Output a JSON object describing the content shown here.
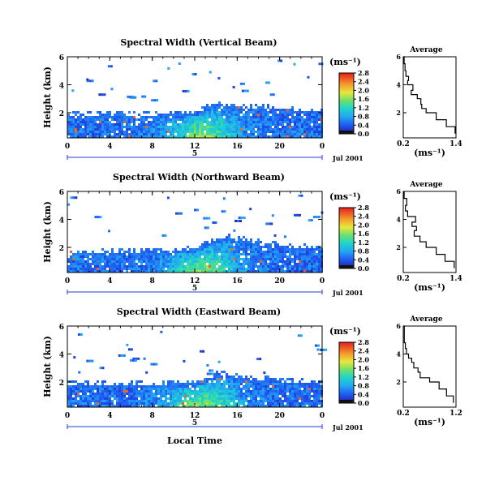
{
  "page": {
    "x_axis_label": "Local Time",
    "date_label": "Jul 2001",
    "day_label": "5",
    "colorbar_unit": "(ms⁻¹)",
    "avg_title": "Average",
    "avg_unit": "(ms⁻¹)",
    "y_axis_label": "Height (km)"
  },
  "chart_data": [
    {
      "type": "heatmap",
      "title": "Spectral Width (Vertical Beam)",
      "xlabel": "Local Time",
      "ylabel": "Height (km)",
      "x_ticks": [
        "0",
        "4",
        "8",
        "12",
        "16",
        "20",
        "0"
      ],
      "y_ticks": [
        "2",
        "4",
        "6"
      ],
      "xlim": [
        0,
        24
      ],
      "ylim": [
        0.2,
        6
      ],
      "boundary_layer_top_km": [
        1.9,
        1.9,
        1.9,
        1.9,
        1.9,
        1.9,
        1.9,
        1.9,
        1.9,
        1.95,
        1.95,
        2.0,
        2.1,
        2.4,
        2.7,
        2.6,
        2.5,
        2.4,
        2.5,
        2.4,
        2.4,
        2.3,
        2.2,
        2.2,
        2.2
      ],
      "colorbar": {
        "label": "(ms⁻¹)",
        "min": 0.0,
        "max": 2.8,
        "ticks": [
          "0.0",
          "0.4",
          "0.8",
          "1.2",
          "1.6",
          "2.0",
          "2.4",
          "2.8"
        ]
      },
      "average_profile": {
        "title": "Average",
        "xlabel": "(ms⁻¹)",
        "xlim": [
          0.2,
          1.4
        ],
        "x_ticks": [
          "0.2",
          "1.4"
        ],
        "ylim": [
          0.2,
          6
        ],
        "y_ticks": [
          "2",
          "4",
          "6"
        ],
        "heights": [
          0.5,
          1.0,
          1.5,
          2.0,
          2.3,
          2.6,
          3.0,
          3.3,
          3.6,
          4.0,
          4.3,
          4.6,
          5.0,
          5.5,
          6.0
        ],
        "values": [
          1.38,
          1.18,
          0.95,
          0.72,
          0.62,
          0.6,
          0.52,
          0.38,
          0.42,
          0.3,
          0.32,
          0.26,
          0.24,
          0.22,
          0.2
        ]
      }
    },
    {
      "type": "heatmap",
      "title": "Spectral Width (Northward Beam)",
      "xlabel": "Local Time",
      "ylabel": "Height (km)",
      "x_ticks": [
        "0",
        "4",
        "8",
        "12",
        "16",
        "20",
        "0"
      ],
      "y_ticks": [
        "2",
        "4",
        "6"
      ],
      "xlim": [
        0,
        24
      ],
      "ylim": [
        0.2,
        6
      ],
      "boundary_layer_top_km": [
        1.7,
        1.7,
        1.7,
        1.7,
        1.75,
        1.75,
        1.75,
        1.8,
        1.8,
        1.8,
        1.85,
        1.9,
        2.0,
        2.3,
        2.6,
        2.8,
        2.7,
        2.5,
        2.4,
        2.3,
        2.2,
        2.1,
        2.1,
        2.0,
        2.0
      ],
      "colorbar": {
        "label": "(ms⁻¹)",
        "min": 0.0,
        "max": 2.8,
        "ticks": [
          "0.0",
          "0.4",
          "0.8",
          "1.2",
          "1.6",
          "2.0",
          "2.4",
          "2.8"
        ]
      },
      "average_profile": {
        "title": "Average",
        "xlabel": "(ms⁻¹)",
        "xlim": [
          0.2,
          1.4
        ],
        "x_ticks": [
          "0.2",
          "1.4"
        ],
        "ylim": [
          0.2,
          6
        ],
        "y_ticks": [
          "2",
          "4",
          "6"
        ],
        "heights": [
          0.5,
          1.0,
          1.5,
          2.0,
          2.4,
          2.8,
          3.2,
          3.5,
          3.8,
          4.2,
          4.6,
          5.0,
          5.5,
          6.0
        ],
        "values": [
          1.36,
          1.15,
          0.95,
          0.72,
          0.58,
          0.45,
          0.5,
          0.4,
          0.48,
          0.3,
          0.25,
          0.28,
          0.22,
          0.22
        ]
      }
    },
    {
      "type": "heatmap",
      "title": "Spectral Width (Eastward Beam)",
      "xlabel": "Local Time",
      "ylabel": "Height (km)",
      "x_ticks": [
        "0",
        "4",
        "8",
        "12",
        "16",
        "20",
        "0"
      ],
      "y_ticks": [
        "2",
        "4",
        "6"
      ],
      "xlim": [
        0,
        24
      ],
      "ylim": [
        0.2,
        6
      ],
      "boundary_layer_top_km": [
        1.9,
        1.9,
        1.9,
        1.9,
        1.9,
        1.9,
        1.9,
        1.9,
        1.9,
        1.9,
        1.95,
        2.0,
        2.0,
        2.3,
        2.6,
        2.6,
        2.4,
        2.3,
        2.2,
        2.4,
        2.2,
        2.1,
        2.1,
        2.0,
        2.0
      ],
      "colorbar": {
        "label": "(ms⁻¹)",
        "min": 0.0,
        "max": 2.8,
        "ticks": [
          "0.0",
          "0.4",
          "0.8",
          "1.2",
          "1.6",
          "2.0",
          "2.4",
          "2.8"
        ]
      },
      "average_profile": {
        "title": "Average",
        "xlabel": "(ms⁻¹)",
        "xlim": [
          0.2,
          1.2
        ],
        "x_ticks": [
          "0.2",
          "1.2"
        ],
        "ylim": [
          0.2,
          6
        ],
        "y_ticks": [
          "2",
          "4",
          "6"
        ],
        "heights": [
          0.5,
          1.0,
          1.5,
          2.0,
          2.3,
          2.7,
          3.0,
          3.4,
          3.7,
          4.0,
          4.4,
          4.8,
          5.3,
          6.0
        ],
        "values": [
          1.15,
          1.02,
          0.88,
          0.7,
          0.52,
          0.48,
          0.4,
          0.36,
          0.3,
          0.26,
          0.24,
          0.22,
          0.22,
          0.2
        ]
      }
    }
  ]
}
